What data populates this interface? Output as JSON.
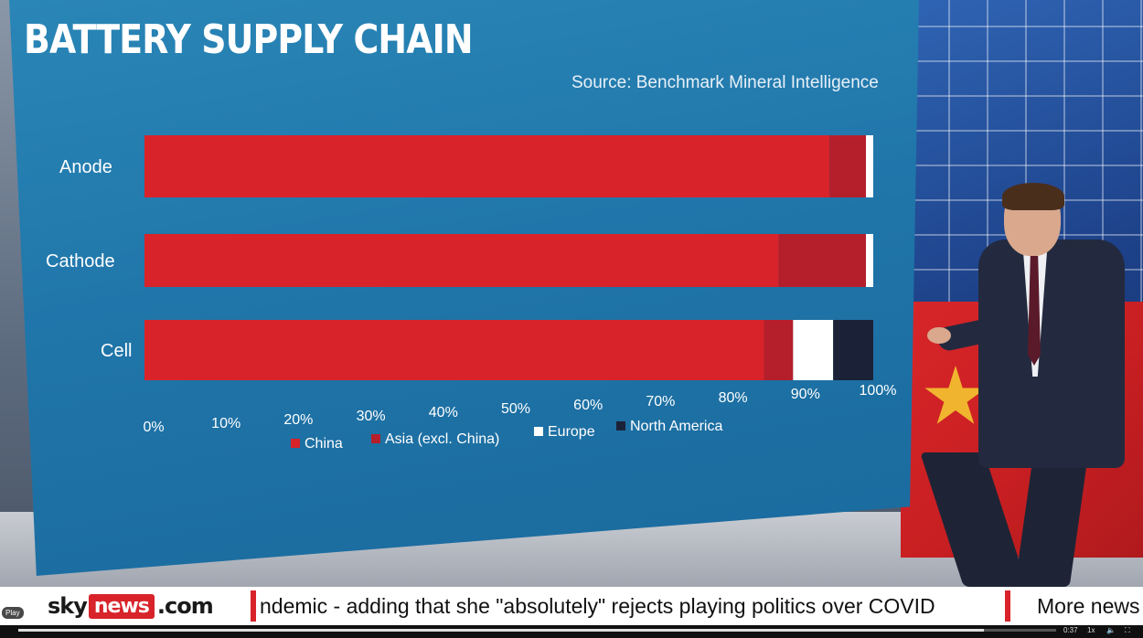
{
  "chart_data": {
    "type": "bar",
    "orientation": "horizontal",
    "stacked": true,
    "title": "BATTERY SUPPLY CHAIN",
    "subtitle": "Source: Benchmark Mineral Intelligence",
    "categories": [
      "Anode",
      "Cathode",
      "Cell"
    ],
    "series": [
      {
        "name": "China",
        "color": "#d8232a",
        "values": [
          94,
          87,
          85
        ]
      },
      {
        "name": "Asia (excl. China)",
        "color": "#b51f2b",
        "values": [
          5,
          12,
          4
        ]
      },
      {
        "name": "Europe",
        "color": "#ffffff",
        "values": [
          1,
          1,
          5.5
        ]
      },
      {
        "name": "North America",
        "color": "#1b2238",
        "values": [
          0,
          0,
          5.5
        ]
      }
    ],
    "x_ticks": [
      "0%",
      "10%",
      "20%",
      "30%",
      "40%",
      "50%",
      "60%",
      "70%",
      "80%",
      "90%",
      "100%"
    ],
    "xlim": [
      0,
      100
    ],
    "legend_position": "bottom",
    "grid": false
  },
  "ticker": {
    "logo_sky": "sky",
    "logo_news": "news",
    "logo_com": ".com",
    "headline": "ndemic - adding that she \"absolutely\" rejects playing politics over COVID",
    "more": "More news"
  },
  "player": {
    "play_label": "Play",
    "time": "0:37",
    "speed": "1x",
    "progress": 0.93
  }
}
